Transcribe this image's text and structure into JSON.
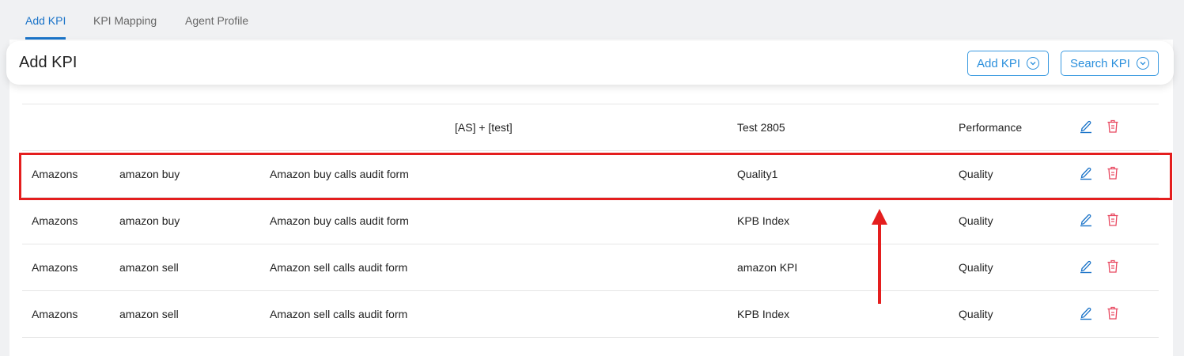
{
  "tabs": [
    {
      "label": "Add KPI",
      "active": true
    },
    {
      "label": "KPI Mapping"
    },
    {
      "label": "Agent Profile"
    }
  ],
  "header": {
    "title": "Add KPI",
    "buttons": [
      {
        "label": "Add KPI",
        "icon": "chevron-down-circle-icon"
      },
      {
        "label": "Search KPI",
        "icon": "chevron-down-circle-icon"
      }
    ]
  },
  "rows": [
    {
      "c1": "",
      "c2": "",
      "c3": "",
      "c4": "[AS] + [test]",
      "c5": "Test 2805",
      "c6": "Performance"
    },
    {
      "c1": "Amazons",
      "c2": "amazon buy",
      "c3": "Amazon buy calls audit form",
      "c4": "",
      "c5": "Quality1",
      "c6": "Quality",
      "highlighted": true
    },
    {
      "c1": "Amazons",
      "c2": "amazon buy",
      "c3": "Amazon buy calls audit form",
      "c4": "",
      "c5": "KPB Index",
      "c6": "Quality"
    },
    {
      "c1": "Amazons",
      "c2": "amazon sell",
      "c3": "Amazon sell calls audit form",
      "c4": "",
      "c5": "amazon KPI",
      "c6": "Quality"
    },
    {
      "c1": "Amazons",
      "c2": "amazon sell",
      "c3": "Amazon sell calls audit form",
      "c4": "",
      "c5": "KPB Index",
      "c6": "Quality"
    }
  ],
  "colors": {
    "accent": "#1a73c8",
    "edit": "#1a73c8",
    "delete": "#e8475f",
    "highlight": "#e41e1e"
  }
}
